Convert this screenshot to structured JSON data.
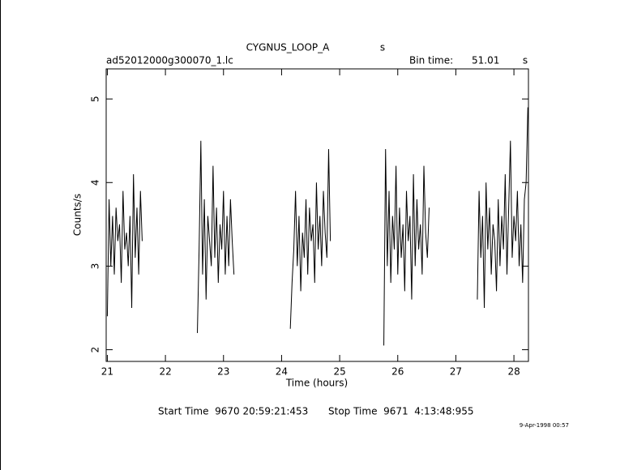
{
  "chart_data": {
    "type": "line",
    "title": "CYGNUS_LOOP_A",
    "annotations": [
      "s",
      "ad52012000g300070_1.lc",
      "Bin time:",
      "51.01",
      "s",
      "Start Time  9670 20:59:21:453",
      "Stop Time  9671  4:13:48:955",
      "9-Apr-1998 00:57"
    ],
    "xlabel": "Time (hours)",
    "ylabel": "Counts/s",
    "xlim": [
      20.98,
      28.25
    ],
    "ylim": [
      1.86,
      5.36
    ],
    "xticks": [
      21,
      22,
      23,
      24,
      25,
      26,
      27,
      28
    ],
    "yticks": [
      2,
      3,
      4,
      5
    ],
    "color": "#000000",
    "x": [
      21.0,
      21.03,
      21.06,
      21.09,
      21.12,
      21.15,
      21.18,
      21.21,
      21.24,
      21.27,
      21.3,
      21.33,
      21.36,
      21.39,
      21.42,
      21.45,
      21.48,
      21.51,
      21.54,
      21.57,
      21.6,
      22.0,
      22.55,
      22.58,
      22.61,
      22.64,
      22.67,
      22.7,
      22.73,
      22.76,
      22.79,
      22.82,
      22.85,
      22.88,
      22.91,
      22.94,
      22.97,
      23.0,
      23.03,
      23.06,
      23.09,
      23.12,
      23.15,
      23.18,
      23.7,
      24.15,
      24.18,
      24.21,
      24.24,
      24.27,
      24.3,
      24.33,
      24.36,
      24.39,
      24.42,
      24.45,
      24.48,
      24.51,
      24.54,
      24.57,
      24.6,
      24.63,
      24.66,
      24.69,
      24.72,
      24.75,
      24.78,
      24.81,
      24.84,
      25.3,
      25.76,
      25.79,
      25.82,
      25.85,
      25.88,
      25.91,
      25.94,
      25.97,
      26.0,
      26.03,
      26.06,
      26.09,
      26.12,
      26.15,
      26.18,
      26.21,
      26.24,
      26.27,
      26.3,
      26.33,
      26.36,
      26.39,
      26.42,
      26.45,
      26.48,
      26.51,
      26.54,
      27.0,
      27.37,
      27.4,
      27.43,
      27.46,
      27.49,
      27.52,
      27.55,
      27.58,
      27.61,
      27.64,
      27.67,
      27.7,
      27.73,
      27.76,
      27.79,
      27.82,
      27.85,
      27.88,
      27.91,
      27.94,
      27.97,
      28.0,
      28.03,
      28.06,
      28.09,
      28.12,
      28.15,
      28.18,
      28.21,
      28.24
    ],
    "values": [
      2.4,
      3.8,
      3.0,
      3.6,
      2.9,
      3.7,
      3.3,
      3.5,
      2.8,
      3.9,
      3.2,
      3.4,
      3.0,
      3.6,
      2.5,
      4.1,
      3.1,
      3.7,
      2.9,
      3.9,
      3.3,
      null,
      2.2,
      3.2,
      4.5,
      2.9,
      3.8,
      2.6,
      3.6,
      3.3,
      3.0,
      4.2,
      3.1,
      3.7,
      2.8,
      3.5,
      3.2,
      3.9,
      2.9,
      3.6,
      3.0,
      3.8,
      3.3,
      2.9,
      null,
      2.25,
      2.8,
      3.2,
      3.9,
      3.0,
      3.6,
      2.7,
      3.4,
      3.1,
      3.8,
      2.9,
      3.7,
      3.3,
      3.5,
      2.8,
      4.0,
      3.2,
      3.6,
      3.0,
      3.9,
      3.4,
      3.1,
      4.4,
      3.3,
      null,
      2.05,
      4.4,
      3.0,
      3.9,
      2.8,
      3.6,
      3.2,
      4.2,
      2.9,
      3.7,
      3.1,
      3.5,
      2.7,
      3.9,
      3.3,
      3.6,
      2.6,
      4.1,
      3.0,
      3.8,
      3.2,
      3.5,
      2.9,
      4.2,
      3.4,
      3.1,
      3.7,
      null,
      2.6,
      3.9,
      3.1,
      3.6,
      2.5,
      4.0,
      3.2,
      3.7,
      2.9,
      3.5,
      3.3,
      2.7,
      3.8,
      3.0,
      3.6,
      3.2,
      4.1,
      2.9,
      3.7,
      4.5,
      3.1,
      3.6,
      3.3,
      3.9,
      3.0,
      3.5,
      2.8,
      3.8,
      4.0,
      4.9
    ]
  }
}
